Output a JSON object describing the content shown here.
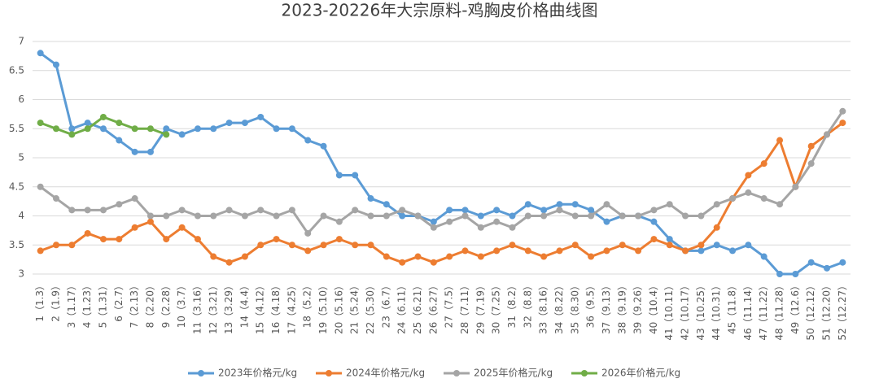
{
  "chart_data": {
    "type": "line",
    "title": "2023-20226年大宗原料-鸡胸皮价格曲线图",
    "categories": [
      "1（1.3）",
      "2（1.9）",
      "3（1.17）",
      "4（1.23）",
      "5（1.31）",
      "6（2.7）",
      "7（2.13）",
      "8（2.20）",
      "9（2.28）",
      "10（3.7）",
      "11（3.16）",
      "12（3.21）",
      "13（3.29）",
      "14（4.4）",
      "15（4.12）",
      "16（4.18）",
      "17（4.25）",
      "18（5.2）",
      "19（5.10）",
      "20（5.16）",
      "21（5.24）",
      "22（5.30）",
      "23（6.7）",
      "24（6.11）",
      "25（6.21）",
      "26（6.27）",
      "27（7.5）",
      "28（7.11）",
      "29（7.19）",
      "30（7.25）",
      "31（8.2）",
      "32（8.8）",
      "33（8.16）",
      "34（8.22）",
      "35（8.30）",
      "36（9.5）",
      "37（9.13）",
      "38（9.19）",
      "39（9.26）",
      "40（10.4）",
      "41（10.11）",
      "42（10.17）",
      "43（10.25）",
      "44（10.31）",
      "45（11.8）",
      "46（11.14）",
      "47（11.22）",
      "48（11.28）",
      "49（12.6）",
      "50（12.12）",
      "51（12.20）",
      "52（12.27）"
    ],
    "series": [
      {
        "name": "2023年价格元/kg",
        "color": "#5b9bd5",
        "values": [
          6.8,
          6.6,
          5.5,
          5.6,
          5.5,
          5.3,
          5.1,
          5.1,
          5.5,
          5.4,
          5.5,
          5.5,
          5.6,
          5.6,
          5.7,
          5.5,
          5.5,
          5.3,
          5.2,
          4.7,
          4.7,
          4.3,
          4.2,
          4.0,
          4.0,
          3.9,
          4.1,
          4.1,
          4.0,
          4.1,
          4.0,
          4.2,
          4.1,
          4.2,
          4.2,
          4.1,
          3.9,
          4.0,
          4.0,
          3.9,
          3.6,
          3.4,
          3.4,
          3.5,
          3.4,
          3.5,
          3.3,
          3.0,
          3.0,
          3.2,
          3.1,
          3.2
        ]
      },
      {
        "name": "2024年价格元/kg",
        "color": "#ed7d31",
        "values": [
          3.4,
          3.5,
          3.5,
          3.7,
          3.6,
          3.6,
          3.8,
          3.9,
          3.6,
          3.8,
          3.6,
          3.3,
          3.2,
          3.3,
          3.5,
          3.6,
          3.5,
          3.4,
          3.5,
          3.6,
          3.5,
          3.5,
          3.3,
          3.2,
          3.3,
          3.2,
          3.3,
          3.4,
          3.3,
          3.4,
          3.5,
          3.4,
          3.3,
          3.4,
          3.5,
          3.3,
          3.4,
          3.5,
          3.4,
          3.6,
          3.5,
          3.4,
          3.5,
          3.8,
          4.3,
          4.7,
          4.9,
          5.3,
          4.5,
          5.2,
          5.4,
          5.6
        ]
      },
      {
        "name": "2025年价格元/kg",
        "color": "#a5a5a5",
        "values": [
          4.5,
          4.3,
          4.1,
          4.1,
          4.1,
          4.2,
          4.3,
          4.0,
          4.0,
          4.1,
          4.0,
          4.0,
          4.1,
          4.0,
          4.1,
          4.0,
          4.1,
          3.7,
          4.0,
          3.9,
          4.1,
          4.0,
          4.0,
          4.1,
          4.0,
          3.8,
          3.9,
          4.0,
          3.8,
          3.9,
          3.8,
          4.0,
          4.0,
          4.1,
          4.0,
          4.0,
          4.2,
          4.0,
          4.0,
          4.1,
          4.2,
          4.0,
          4.0,
          4.2,
          4.3,
          4.4,
          4.3,
          4.2,
          4.5,
          4.9,
          5.4,
          5.8
        ]
      },
      {
        "name": "2026年价格元/kg",
        "color": "#70ad47",
        "values": [
          5.6,
          5.5,
          5.4,
          5.5,
          5.7,
          5.6,
          5.5,
          5.5,
          5.4,
          null,
          null,
          null,
          null,
          null,
          null,
          null,
          null,
          null,
          null,
          null,
          null,
          null,
          null,
          null,
          null,
          null,
          null,
          null,
          null,
          null,
          null,
          null,
          null,
          null,
          null,
          null,
          null,
          null,
          null,
          null,
          null,
          null,
          null,
          null,
          null,
          null,
          null,
          null,
          null,
          null,
          null,
          null
        ]
      }
    ],
    "ylim": [
      3,
      7
    ],
    "yticks": [
      3,
      3.5,
      4,
      4.5,
      5,
      5.5,
      6,
      6.5,
      7
    ],
    "grid": true,
    "legend": "bottom"
  }
}
